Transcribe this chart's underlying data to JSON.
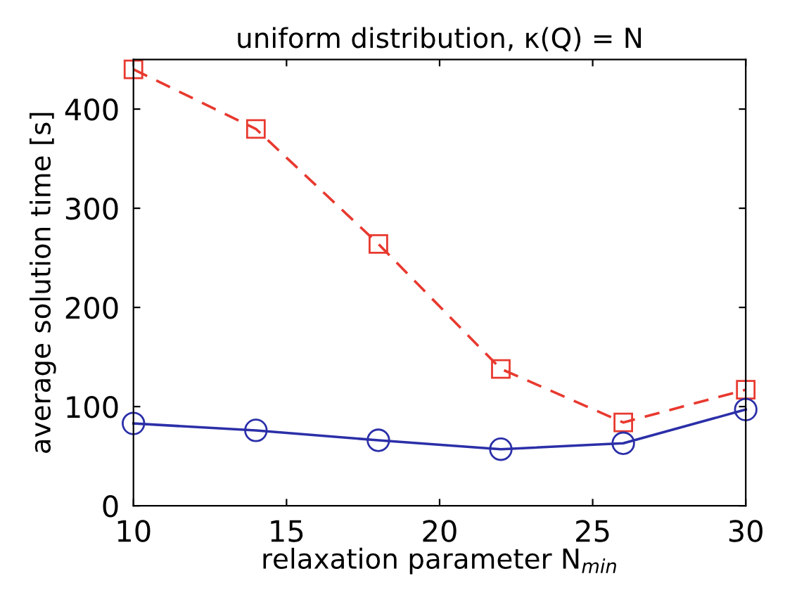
{
  "chart_data": {
    "type": "line",
    "title": "uniform distribution, κ(Q) = N",
    "xlabel": "relaxation parameter N$_{min}$",
    "ylabel": "average solution time [s]",
    "x": [
      10,
      14,
      18,
      22,
      26,
      30
    ],
    "series": [
      {
        "color": "#e8392f",
        "values": [
          440,
          380,
          264,
          138,
          84,
          117
        ],
        "marker": "square",
        "line_style": "dashed"
      },
      {
        "color": "#2b2fa8",
        "values": [
          83,
          76,
          66,
          57,
          63,
          97
        ],
        "marker": "circle",
        "line_style": "solid"
      }
    ],
    "xlim": [
      10,
      30
    ],
    "xticks": [
      10,
      15,
      20,
      25,
      30
    ],
    "ylim": [
      0,
      450
    ],
    "yticks": [
      0,
      100,
      200,
      300,
      400
    ],
    "grid": false
  }
}
